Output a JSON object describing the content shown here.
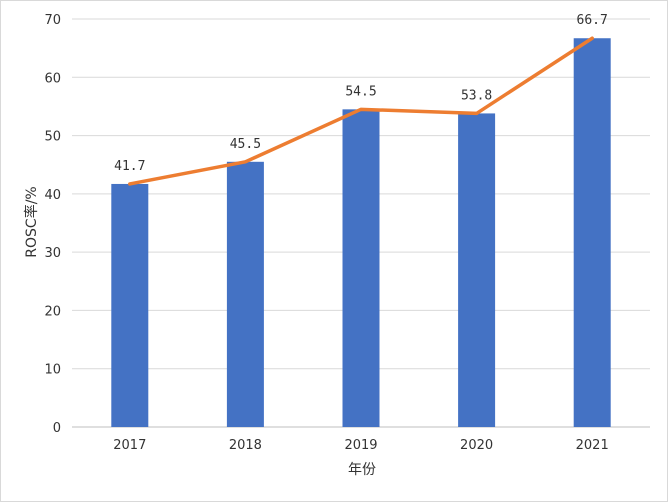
{
  "chart_data": {
    "type": "bar",
    "categories": [
      "2017",
      "2018",
      "2019",
      "2020",
      "2021"
    ],
    "series": [
      {
        "type": "bar",
        "values": [
          41.7,
          45.5,
          54.5,
          53.8,
          66.7
        ],
        "color": "#4472C4"
      },
      {
        "type": "line",
        "values": [
          41.7,
          45.5,
          54.5,
          53.8,
          66.7
        ],
        "color": "#ED7D31"
      }
    ],
    "data_labels": [
      "41.7",
      "45.5",
      "54.5",
      "53.8",
      "66.7"
    ],
    "xlabel": "年份",
    "ylabel": "ROSC率/%",
    "ylim": [
      0,
      70
    ],
    "yticks": [
      0,
      10,
      20,
      30,
      40,
      50,
      60,
      70
    ],
    "grid": true,
    "legend": "none"
  }
}
